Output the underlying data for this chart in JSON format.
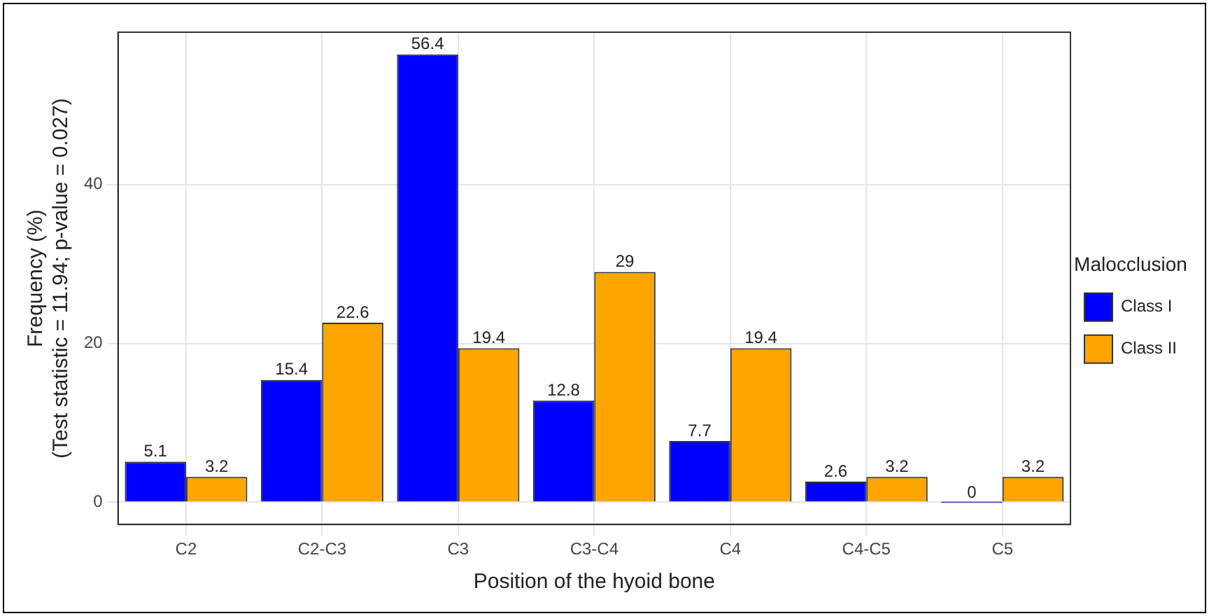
{
  "chart_data": {
    "type": "bar",
    "xlabel": "Position of the hyoid bone",
    "ylabel": "Frequency (%)\n(Test statistic = 11.94; p-value = 0.027)",
    "legend_title": "Malocclusion",
    "categories": [
      "C2",
      "C2-C3",
      "C3",
      "C3-C4",
      "C4",
      "C4-C5",
      "C5"
    ],
    "series": [
      {
        "name": "Class I",
        "color": "#0000ff",
        "values": [
          5.1,
          15.4,
          56.4,
          12.8,
          7.7,
          2.6,
          0
        ]
      },
      {
        "name": "Class II",
        "color": "#ffa500",
        "values": [
          3.2,
          22.6,
          19.4,
          29,
          19.4,
          3.2,
          3.2
        ]
      }
    ],
    "ylim": [
      -2.8,
      59.2
    ],
    "yticks": [
      0,
      20,
      40
    ],
    "grid": true,
    "legend": "right",
    "data_labels": true
  }
}
